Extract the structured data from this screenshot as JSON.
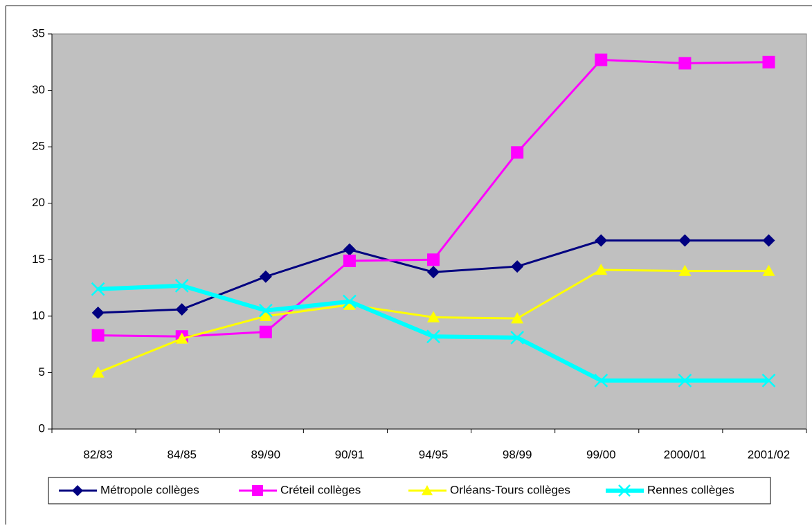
{
  "chart_data": {
    "type": "line",
    "categories": [
      "82/83",
      "84/85",
      "89/90",
      "90/91",
      "94/95",
      "98/99",
      "99/00",
      "2000/01",
      "2001/02"
    ],
    "series": [
      {
        "name": "Métropole collèges",
        "color": "#000080",
        "marker": "diamond",
        "values": [
          10.3,
          10.6,
          13.5,
          15.9,
          13.9,
          14.4,
          16.7,
          16.7,
          16.7
        ]
      },
      {
        "name": "Créteil collèges",
        "color": "#ff00ff",
        "marker": "square",
        "values": [
          8.3,
          8.2,
          8.6,
          14.9,
          15.0,
          24.5,
          32.7,
          32.4,
          32.5
        ]
      },
      {
        "name": "Orléans-Tours collèges",
        "color": "#ffff00",
        "marker": "triangle",
        "values": [
          5.0,
          8.0,
          10.0,
          11.0,
          9.9,
          9.8,
          14.1,
          14.0,
          14.0
        ]
      },
      {
        "name": "Rennes collèges",
        "color": "#00ffff",
        "marker": "x",
        "values": [
          12.4,
          12.7,
          10.5,
          11.3,
          8.2,
          8.1,
          4.3,
          4.3,
          4.3
        ]
      }
    ],
    "ylim": [
      0,
      35
    ],
    "yticks": [
      0,
      5,
      10,
      15,
      20,
      25,
      30,
      35
    ],
    "grid": false,
    "legend": "bottom"
  }
}
